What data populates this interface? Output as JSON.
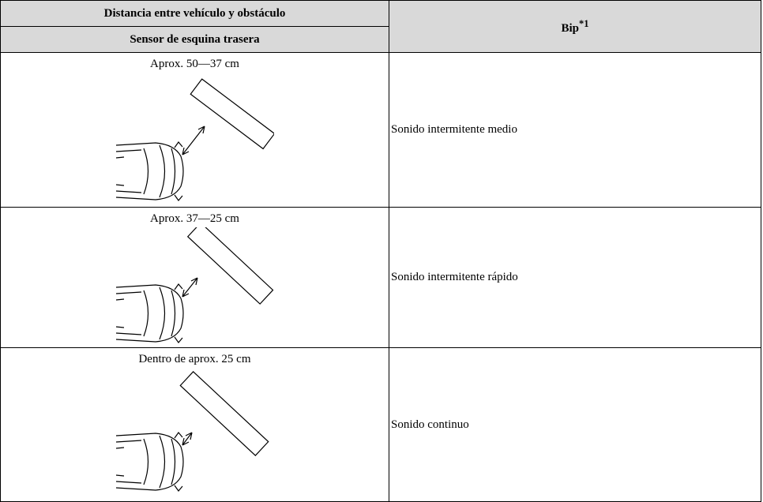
{
  "table": {
    "header": {
      "left_top": "Distancia entre vehículo y obstáculo",
      "left_bottom": "Sensor de esquina trasera",
      "right": "Bip",
      "right_sup": "*1"
    },
    "rows": [
      {
        "distance": "Aprox. 50—37 cm",
        "beep": "Sonido intermitente medio"
      },
      {
        "distance": "Aprox. 37—25 cm",
        "beep": "Sonido intermitente rápido"
      },
      {
        "distance": "Dentro de aprox. 25 cm",
        "beep": "Sonido continuo"
      }
    ]
  }
}
